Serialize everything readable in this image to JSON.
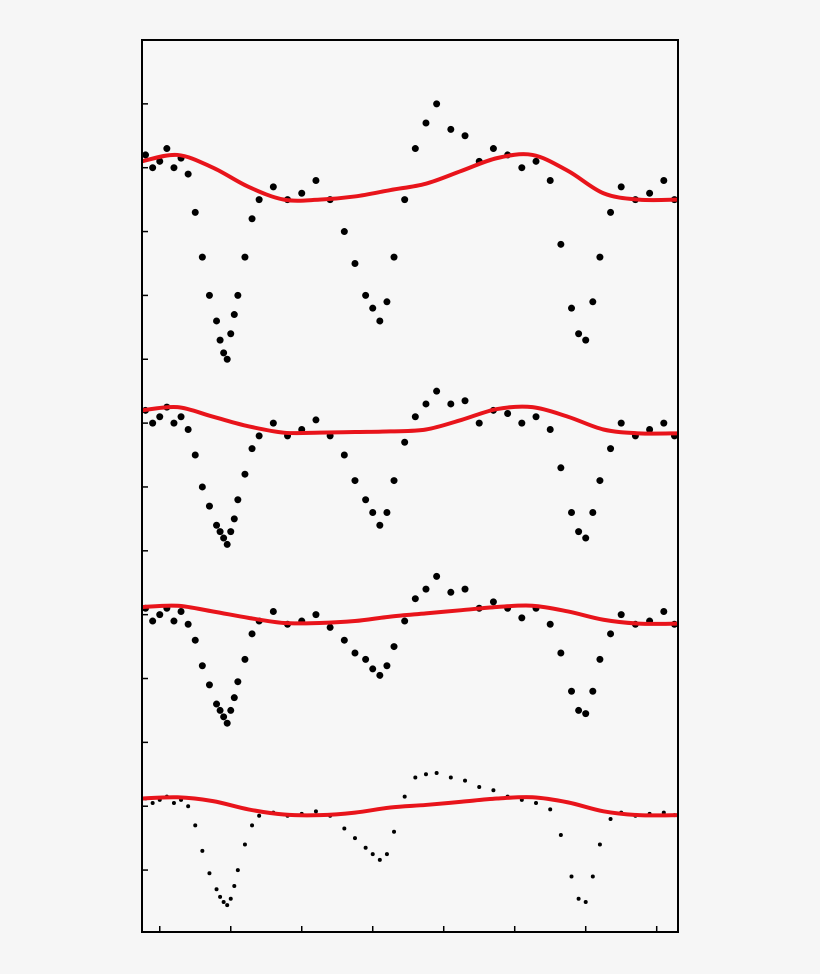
{
  "chart_data": {
    "type": "scatter",
    "xlim": [
      -0.25,
      7.3
    ],
    "ylim": [
      -0.97,
      13
    ],
    "xticks": [
      0,
      1,
      2,
      3,
      4,
      5,
      6,
      7
    ],
    "yticks": [
      0,
      1,
      2,
      3,
      4,
      5,
      6,
      7,
      8,
      9,
      10,
      11,
      12
    ],
    "x": [
      -0.2,
      -0.1,
      0,
      0.1,
      0.2,
      0.3,
      0.4,
      0.5,
      0.6,
      0.7,
      0.8,
      0.85,
      0.9,
      0.95,
      1.0,
      1.05,
      1.1,
      1.2,
      1.3,
      1.4,
      1.6,
      1.8,
      2.0,
      2.2,
      2.4,
      2.6,
      2.75,
      2.9,
      3.0,
      3.1,
      3.2,
      3.3,
      3.45,
      3.6,
      3.75,
      3.9,
      4.1,
      4.3,
      4.5,
      4.7,
      4.9,
      5.1,
      5.3,
      5.5,
      5.65,
      5.8,
      5.9,
      6.0,
      6.1,
      6.2,
      6.35,
      6.5,
      6.7,
      6.9,
      7.1,
      7.25
    ],
    "model_x": [
      -0.25,
      0.25,
      0.75,
      1.25,
      1.75,
      2.25,
      2.75,
      3.25,
      3.75,
      4.25,
      4.75,
      5.25,
      5.75,
      6.25,
      6.75,
      7.3
    ],
    "series": [
      {
        "color": "#000000",
        "marker_size": 3.5,
        "values": [
          11.2,
          11.0,
          11.1,
          11.3,
          11.0,
          11.15,
          10.9,
          10.3,
          9.6,
          9.0,
          8.6,
          8.3,
          8.1,
          8.0,
          8.4,
          8.7,
          9.0,
          9.6,
          10.2,
          10.5,
          10.7,
          10.5,
          10.6,
          10.8,
          10.5,
          10.0,
          9.5,
          9.0,
          8.8,
          8.6,
          8.9,
          9.6,
          10.5,
          11.3,
          11.7,
          12.0,
          11.6,
          11.5,
          11.1,
          11.3,
          11.2,
          11.0,
          11.1,
          10.8,
          9.8,
          8.8,
          8.4,
          8.3,
          8.9,
          9.6,
          10.3,
          10.7,
          10.5,
          10.6,
          10.8,
          10.5
        ],
        "model": {
          "color": "#e8141b",
          "values": [
            11.1,
            11.2,
            11.0,
            10.7,
            10.5,
            10.5,
            10.55,
            10.65,
            10.75,
            10.95,
            11.15,
            11.2,
            10.95,
            10.6,
            10.5,
            10.5
          ]
        }
      },
      {
        "color": "#000000",
        "marker_size": 3.5,
        "values": [
          7.2,
          7.0,
          7.1,
          7.25,
          7.0,
          7.1,
          6.9,
          6.5,
          6.0,
          5.7,
          5.4,
          5.3,
          5.2,
          5.1,
          5.3,
          5.5,
          5.8,
          6.2,
          6.6,
          6.8,
          7.0,
          6.8,
          6.9,
          7.05,
          6.8,
          6.5,
          6.1,
          5.8,
          5.6,
          5.4,
          5.6,
          6.1,
          6.7,
          7.1,
          7.3,
          7.5,
          7.3,
          7.35,
          7.0,
          7.2,
          7.15,
          7.0,
          7.1,
          6.9,
          6.3,
          5.6,
          5.3,
          5.2,
          5.6,
          6.1,
          6.6,
          7.0,
          6.8,
          6.9,
          7.0,
          6.8
        ],
        "model": {
          "color": "#e8141b",
          "values": [
            7.2,
            7.25,
            7.1,
            6.95,
            6.85,
            6.85,
            6.86,
            6.87,
            6.9,
            7.05,
            7.22,
            7.25,
            7.1,
            6.9,
            6.84,
            6.84
          ]
        }
      },
      {
        "color": "#000000",
        "marker_size": 3.5,
        "values": [
          4.1,
          3.9,
          4.0,
          4.1,
          3.9,
          4.05,
          3.85,
          3.6,
          3.2,
          2.9,
          2.6,
          2.5,
          2.4,
          2.3,
          2.5,
          2.7,
          2.95,
          3.3,
          3.7,
          3.9,
          4.05,
          3.85,
          3.9,
          4.0,
          3.8,
          3.6,
          3.4,
          3.3,
          3.15,
          3.05,
          3.2,
          3.5,
          3.9,
          4.25,
          4.4,
          4.6,
          4.35,
          4.4,
          4.1,
          4.2,
          4.1,
          3.95,
          4.1,
          3.85,
          3.4,
          2.8,
          2.5,
          2.45,
          2.8,
          3.3,
          3.7,
          4.0,
          3.85,
          3.9,
          4.05,
          3.85
        ],
        "model": {
          "color": "#e8141b",
          "values": [
            4.12,
            4.14,
            4.05,
            3.95,
            3.87,
            3.87,
            3.9,
            3.97,
            4.02,
            4.07,
            4.12,
            4.14,
            4.05,
            3.92,
            3.86,
            3.86
          ]
        }
      },
      {
        "color": "#000000",
        "marker_size": 2,
        "values": [
          1.12,
          1.05,
          1.1,
          1.15,
          1.05,
          1.1,
          1.0,
          0.7,
          0.3,
          -0.05,
          -0.3,
          -0.42,
          -0.5,
          -0.55,
          -0.45,
          -0.25,
          0.0,
          0.4,
          0.7,
          0.85,
          0.9,
          0.85,
          0.88,
          0.92,
          0.85,
          0.65,
          0.5,
          0.35,
          0.25,
          0.16,
          0.25,
          0.6,
          1.15,
          1.45,
          1.5,
          1.52,
          1.45,
          1.4,
          1.3,
          1.25,
          1.15,
          1.1,
          1.05,
          0.95,
          0.55,
          -0.1,
          -0.45,
          -0.5,
          -0.1,
          0.4,
          0.8,
          0.9,
          0.85,
          0.88,
          0.9,
          0.86
        ],
        "model": {
          "color": "#e8141b",
          "values": [
            1.12,
            1.14,
            1.08,
            0.95,
            0.87,
            0.86,
            0.9,
            0.98,
            1.02,
            1.07,
            1.12,
            1.14,
            1.06,
            0.92,
            0.86,
            0.86
          ]
        }
      }
    ]
  }
}
